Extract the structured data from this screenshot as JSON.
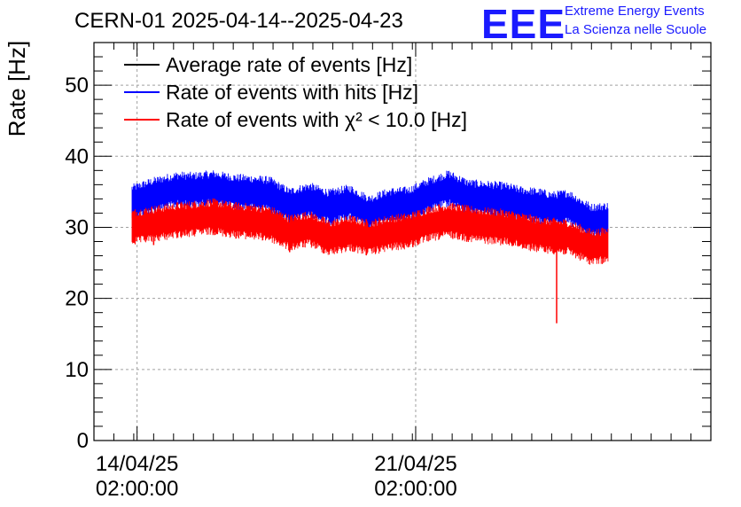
{
  "header": {
    "title": "CERN-01 2025-04-14--2025-04-23",
    "logo_text": "EEE",
    "logo_line1": "Extreme Energy Events",
    "logo_line2": "La Scienza nelle Scuole"
  },
  "colors": {
    "average": "#000000",
    "hits": "#0000ff",
    "chi2": "#ff0000",
    "logo": "#1a1aff",
    "grid": "#a0a0a0"
  },
  "chart_data": {
    "type": "line",
    "title": "CERN-01 2025-04-14--2025-04-23",
    "xlabel": "",
    "ylabel": "Rate [Hz]",
    "ylim": [
      0,
      56
    ],
    "xlim": [
      "2025-04-13T00:00",
      "2025-04-28T12:00"
    ],
    "yticks": [
      0,
      10,
      20,
      30,
      40,
      50
    ],
    "xticks": [
      {
        "date": "2025-04-14T02:00",
        "label_line1": "14/04/25",
        "label_line2": "02:00:00"
      },
      {
        "date": "2025-04-21T02:00",
        "label_line1": "21/04/25",
        "label_line2": "02:00:00"
      }
    ],
    "grid": true,
    "legend_position": "top-left",
    "series": [
      {
        "name": "Average rate of events [Hz]",
        "color": "#000000",
        "x": [],
        "y": []
      },
      {
        "name": "Rate of events with hits [Hz]",
        "color": "#0000ff",
        "band_width": 2.6,
        "x": [
          "2025-04-13T23:00",
          "2025-04-14T12:00",
          "2025-04-15T02:00",
          "2025-04-15T12:00",
          "2025-04-16T00:00",
          "2025-04-16T12:00",
          "2025-04-17T00:00",
          "2025-04-17T10:00",
          "2025-04-17T22:00",
          "2025-04-18T10:00",
          "2025-04-18T22:00",
          "2025-04-19T10:00",
          "2025-04-19T22:00",
          "2025-04-20T10:00",
          "2025-04-20T22:00",
          "2025-04-21T10:00",
          "2025-04-21T22:00",
          "2025-04-22T10:00",
          "2025-04-22T22:00",
          "2025-04-23T08:00",
          "2025-04-23T18:00",
          "2025-04-24T04:00",
          "2025-04-24T12:00",
          "2025-04-24T22:00",
          "2025-04-25T12:00",
          "2025-04-25T22:00"
        ],
        "y": [
          33.5,
          34.5,
          35.3,
          35.2,
          35.5,
          35.0,
          34.8,
          34.6,
          33.0,
          33.8,
          32.8,
          33.5,
          32.0,
          33.0,
          33.2,
          34.5,
          35.5,
          34.2,
          34.0,
          33.8,
          33.2,
          33.0,
          32.5,
          32.8,
          30.8,
          31.0
        ]
      },
      {
        "name": "Rate of events with χ² < 10.0 [Hz]",
        "color": "#ff0000",
        "band_width": 2.6,
        "x": [
          "2025-04-13T23:00",
          "2025-04-14T12:00",
          "2025-04-15T02:00",
          "2025-04-15T12:00",
          "2025-04-16T00:00",
          "2025-04-16T12:00",
          "2025-04-17T00:00",
          "2025-04-17T10:00",
          "2025-04-17T22:00",
          "2025-04-18T10:00",
          "2025-04-18T22:00",
          "2025-04-19T10:00",
          "2025-04-19T22:00",
          "2025-04-20T10:00",
          "2025-04-20T22:00",
          "2025-04-21T10:00",
          "2025-04-21T22:00",
          "2025-04-22T10:00",
          "2025-04-22T22:00",
          "2025-04-23T08:00",
          "2025-04-23T18:00",
          "2025-04-24T04:00",
          "2025-04-24T12:00",
          "2025-04-24T22:00",
          "2025-04-25T12:00",
          "2025-04-25T22:00"
        ],
        "y": [
          30.0,
          30.5,
          31.0,
          31.2,
          31.5,
          31.0,
          30.8,
          30.5,
          29.2,
          29.8,
          28.5,
          29.2,
          28.5,
          29.2,
          29.5,
          30.5,
          31.0,
          30.5,
          30.2,
          30.0,
          29.5,
          29.0,
          28.8,
          28.6,
          27.2,
          27.5
        ],
        "spikes": [
          {
            "x": "2025-04-14T12:00",
            "y": 27.5
          },
          {
            "x": "2025-04-17T22:00",
            "y": 26.5
          },
          {
            "x": "2025-04-24T15:00",
            "y": 16.5
          }
        ]
      }
    ]
  }
}
